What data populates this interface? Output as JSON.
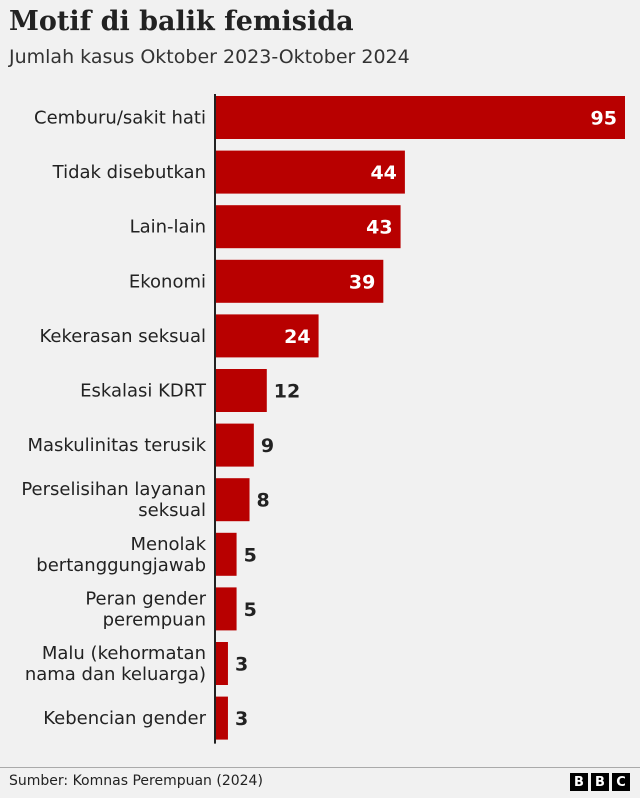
{
  "header": {
    "title": "Motif di balik femisida",
    "subtitle": "Jumlah kasus Oktober 2023-Oktober 2024"
  },
  "footer": {
    "source": "Sumber: Komnas Perempuan (2024)",
    "logo_letters": [
      "B",
      "B",
      "C"
    ]
  },
  "colors": {
    "bar": "#b80000",
    "label_inside": "#ffffff",
    "label_outside": "#222222",
    "axis": "#222222"
  },
  "chart_data": {
    "type": "bar",
    "orientation": "horizontal",
    "title": "Motif di balik femisida",
    "subtitle": "Jumlah kasus Oktober 2023-Oktober 2024",
    "xlabel": "",
    "ylabel": "",
    "xlim": [
      0,
      95
    ],
    "grid": false,
    "data_labels": true,
    "categories": [
      [
        "Cemburu/sakit hati"
      ],
      [
        "Tidak disebutkan"
      ],
      [
        "Lain-lain"
      ],
      [
        "Ekonomi"
      ],
      [
        "Kekerasan seksual"
      ],
      [
        "Eskalasi KDRT"
      ],
      [
        "Maskulinitas terusik"
      ],
      [
        "Perselisihan layanan",
        "seksual"
      ],
      [
        "Menolak",
        "bertanggungjawab"
      ],
      [
        "Peran gender",
        "perempuan"
      ],
      [
        "Malu (kehormatan",
        "nama dan keluarga)"
      ],
      [
        "Kebencian gender"
      ]
    ],
    "values": [
      95,
      44,
      43,
      39,
      24,
      12,
      9,
      8,
      5,
      5,
      3,
      3
    ]
  }
}
